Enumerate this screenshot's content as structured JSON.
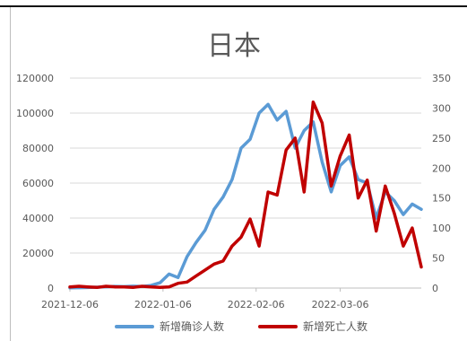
{
  "chart_data": {
    "type": "line",
    "title": "日本",
    "xlabel": "",
    "ylabel": "",
    "x_ticks": [
      "2021-12-06",
      "2022-01-06",
      "2022-02-06",
      "2022-03-06"
    ],
    "y_left": {
      "min": 0,
      "max": 120000,
      "ticks": [
        0,
        20000,
        40000,
        60000,
        80000,
        100000,
        120000
      ]
    },
    "y_right": {
      "min": 0,
      "max": 350,
      "ticks": [
        0,
        50,
        100,
        150,
        200,
        250,
        300,
        350
      ]
    },
    "grid": true,
    "legend": "bottom",
    "x": [
      "2021-12-06",
      "2021-12-09",
      "2021-12-12",
      "2021-12-15",
      "2021-12-18",
      "2021-12-21",
      "2021-12-24",
      "2021-12-27",
      "2021-12-30",
      "2022-01-02",
      "2022-01-05",
      "2022-01-08",
      "2022-01-11",
      "2022-01-14",
      "2022-01-17",
      "2022-01-20",
      "2022-01-23",
      "2022-01-26",
      "2022-01-29",
      "2022-02-01",
      "2022-02-04",
      "2022-02-07",
      "2022-02-10",
      "2022-02-13",
      "2022-02-16",
      "2022-02-19",
      "2022-02-22",
      "2022-02-25",
      "2022-02-28",
      "2022-03-03",
      "2022-03-06",
      "2022-03-09",
      "2022-03-12",
      "2022-03-15",
      "2022-03-18",
      "2022-03-21",
      "2022-03-24",
      "2022-03-27",
      "2022-03-30",
      "2022-04-02"
    ],
    "series": [
      {
        "name": "新增确诊人数",
        "axis": "left",
        "color": "#5b9bd5",
        "values": [
          100,
          200,
          300,
          500,
          700,
          1000,
          800,
          1100,
          900,
          1500,
          3000,
          8000,
          6000,
          18000,
          26000,
          33000,
          45000,
          52000,
          62000,
          80000,
          85000,
          100000,
          105000,
          96000,
          101000,
          80000,
          90000,
          95000,
          72000,
          55000,
          70000,
          75000,
          62000,
          60000,
          40000,
          55000,
          50000,
          42000,
          48000,
          45000
        ]
      },
      {
        "name": "新增死亡人数",
        "axis": "right",
        "color": "#c00000",
        "values": [
          2,
          3,
          2,
          1,
          3,
          2,
          2,
          1,
          3,
          2,
          1,
          2,
          8,
          10,
          20,
          30,
          40,
          45,
          70,
          85,
          115,
          70,
          160,
          155,
          230,
          250,
          160,
          310,
          275,
          170,
          220,
          255,
          150,
          180,
          95,
          170,
          125,
          70,
          100,
          35
        ]
      }
    ]
  }
}
